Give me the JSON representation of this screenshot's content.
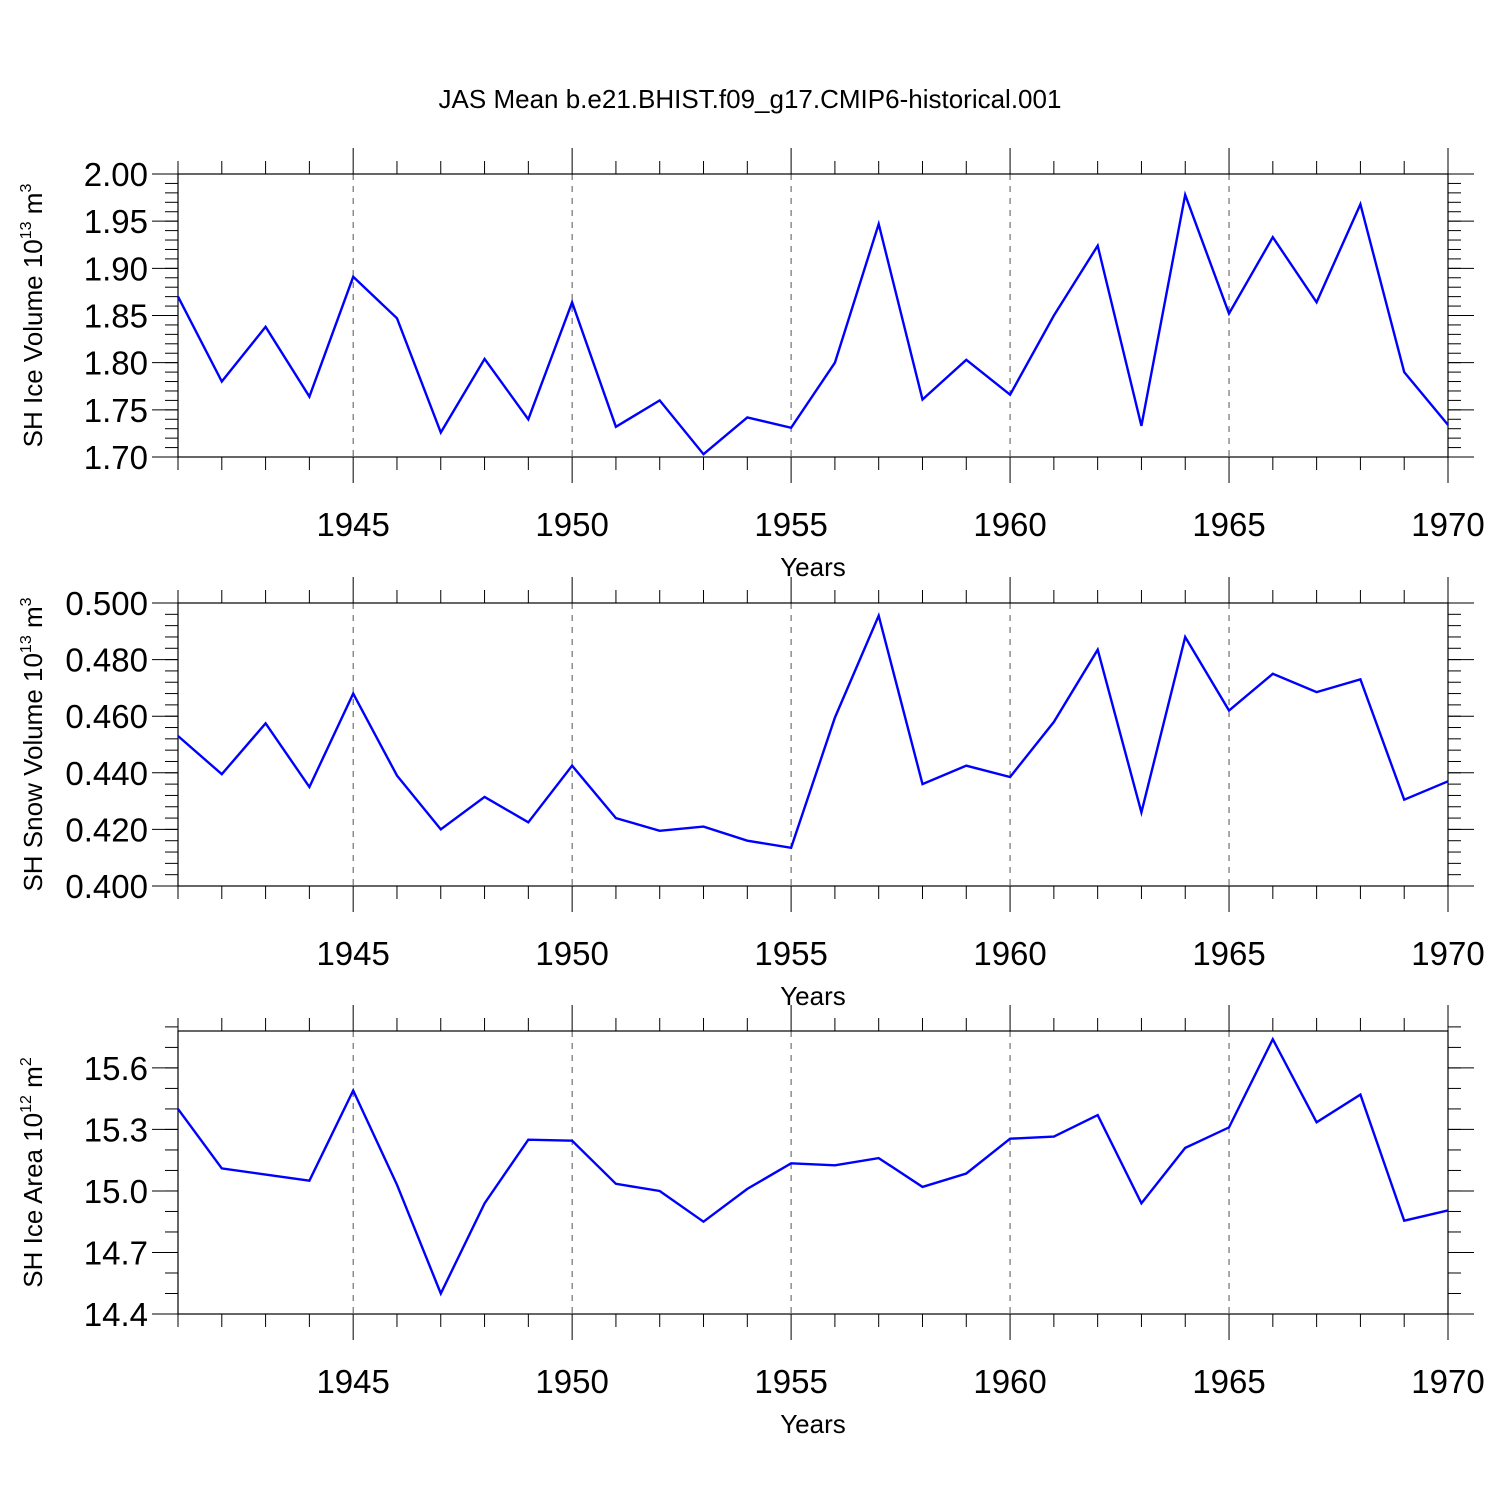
{
  "title": "JAS Mean b.e21.BHIST.f09_g17.CMIP6-historical.001",
  "chart_data": [
    {
      "type": "line",
      "ylabel_main": "SH Ice Volume 10",
      "ylabel_sup": "13",
      "ylabel_unit": " m",
      "ylabel_unit_sup": "3",
      "xlabel": "Years",
      "xlim": [
        1941,
        1970
      ],
      "ylim": [
        1.7,
        2.0
      ],
      "x_ticks": [
        1945,
        1950,
        1955,
        1960,
        1965,
        1970
      ],
      "y_ticks": [
        "1.70",
        "1.75",
        "1.80",
        "1.85",
        "1.90",
        "1.95",
        "2.00"
      ],
      "y_minor_step": 0.01,
      "x": [
        1941,
        1942,
        1943,
        1944,
        1945,
        1946,
        1947,
        1948,
        1949,
        1950,
        1951,
        1952,
        1953,
        1954,
        1955,
        1956,
        1957,
        1958,
        1959,
        1960,
        1961,
        1962,
        1963,
        1964,
        1965,
        1966,
        1967,
        1968,
        1969,
        1970
      ],
      "values": [
        1.87,
        1.78,
        1.838,
        1.764,
        1.891,
        1.847,
        1.726,
        1.804,
        1.74,
        1.864,
        1.732,
        1.76,
        1.703,
        1.742,
        1.731,
        1.8,
        1.947,
        1.761,
        1.803,
        1.766,
        1.85,
        1.924,
        1.733,
        1.978,
        1.852,
        1.933,
        1.864,
        1.968,
        1.79,
        1.734
      ]
    },
    {
      "type": "line",
      "ylabel_main": "SH Snow Volume 10",
      "ylabel_sup": "13",
      "ylabel_unit": " m",
      "ylabel_unit_sup": "3",
      "xlabel": "Years",
      "xlim": [
        1941,
        1970
      ],
      "ylim": [
        0.4,
        0.5
      ],
      "x_ticks": [
        1945,
        1950,
        1955,
        1960,
        1965,
        1970
      ],
      "y_ticks": [
        "0.400",
        "0.420",
        "0.440",
        "0.460",
        "0.480",
        "0.500"
      ],
      "y_minor_step": 0.004,
      "x": [
        1941,
        1942,
        1943,
        1944,
        1945,
        1946,
        1947,
        1948,
        1949,
        1950,
        1951,
        1952,
        1953,
        1954,
        1955,
        1956,
        1957,
        1958,
        1959,
        1960,
        1961,
        1962,
        1963,
        1964,
        1965,
        1966,
        1967,
        1968,
        1969,
        1970
      ],
      "values": [
        0.453,
        0.4395,
        0.4575,
        0.435,
        0.468,
        0.439,
        0.42,
        0.4315,
        0.4225,
        0.4425,
        0.424,
        0.4195,
        0.421,
        0.416,
        0.4135,
        0.4595,
        0.4955,
        0.436,
        0.4425,
        0.4385,
        0.458,
        0.4835,
        0.426,
        0.488,
        0.462,
        0.475,
        0.4685,
        0.473,
        0.4305,
        0.437
      ]
    },
    {
      "type": "line",
      "ylabel_main": "SH Ice Area 10",
      "ylabel_sup": "12",
      "ylabel_unit": " m",
      "ylabel_unit_sup": "2",
      "xlabel": "Years",
      "xlim": [
        1941,
        1970
      ],
      "ylim": [
        14.4,
        15.78
      ],
      "x_ticks": [
        1945,
        1950,
        1955,
        1960,
        1965,
        1970
      ],
      "y_ticks": [
        "14.4",
        "14.7",
        "15.0",
        "15.3",
        "15.6"
      ],
      "y_minor_step": 0.1,
      "x": [
        1941,
        1942,
        1943,
        1944,
        1945,
        1946,
        1947,
        1948,
        1949,
        1950,
        1951,
        1952,
        1953,
        1954,
        1955,
        1956,
        1957,
        1958,
        1959,
        1960,
        1961,
        1962,
        1963,
        1964,
        1965,
        1966,
        1967,
        1968,
        1969,
        1970
      ],
      "values": [
        15.4,
        15.11,
        15.08,
        15.05,
        15.49,
        15.03,
        14.5,
        14.94,
        15.25,
        15.245,
        15.035,
        15.0,
        14.85,
        15.01,
        15.135,
        15.125,
        15.16,
        15.02,
        15.085,
        15.255,
        15.265,
        15.37,
        14.94,
        15.21,
        15.31,
        15.74,
        15.335,
        15.47,
        14.855,
        14.905
      ]
    }
  ]
}
